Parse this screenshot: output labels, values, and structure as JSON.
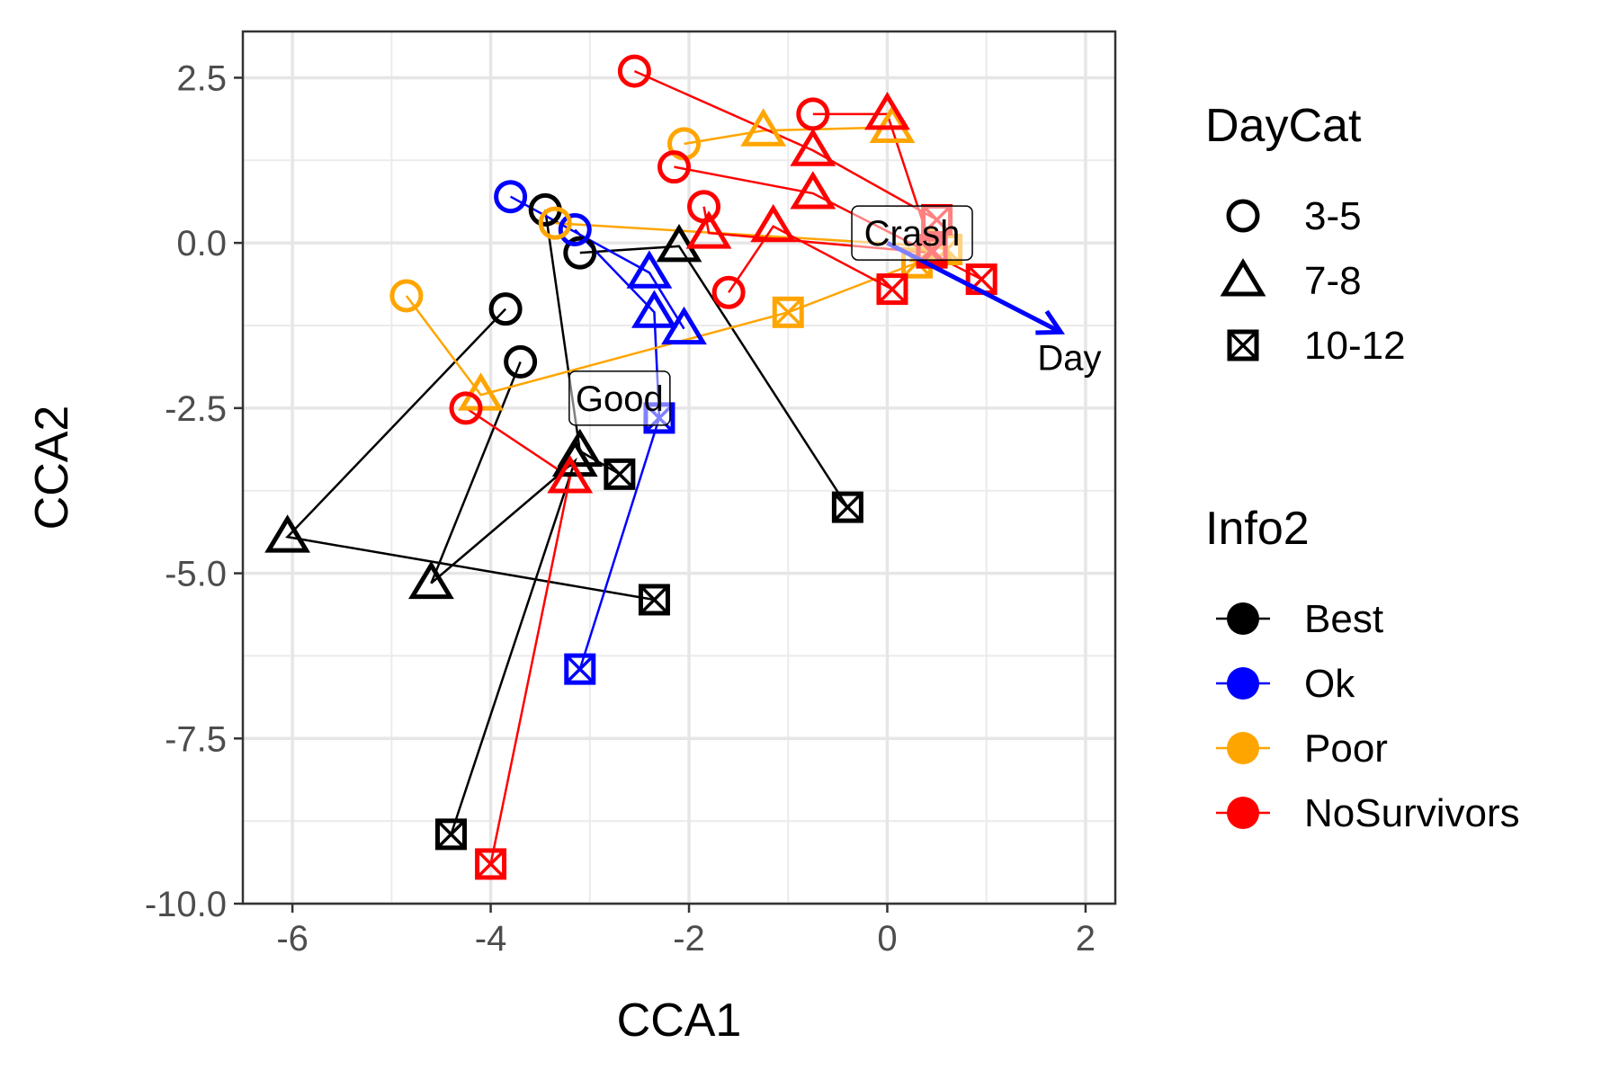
{
  "chart_data": {
    "type": "scatter",
    "title": "",
    "xlabel": "CCA1",
    "ylabel": "CCA2",
    "xlim": [
      -6.5,
      2.3
    ],
    "ylim": [
      -10.0,
      3.2
    ],
    "x_ticks": [
      -6,
      -4,
      -2,
      0,
      2
    ],
    "x_tick_labels": [
      "-6",
      "-4",
      "-2",
      "0",
      "2"
    ],
    "y_ticks": [
      2.5,
      0.0,
      -2.5,
      -5.0,
      -7.5,
      -10.0
    ],
    "y_tick_labels": [
      "2.5",
      "0.0",
      "-2.5",
      "-5.0",
      "-7.5",
      "-10.0"
    ],
    "grid": true,
    "shape_legend": {
      "title": "DayCat",
      "entries": [
        {
          "label": "3-5",
          "shape": "circle"
        },
        {
          "label": "7-8",
          "shape": "triangle"
        },
        {
          "label": "10-12",
          "shape": "boxcross"
        }
      ]
    },
    "color_legend": {
      "title": "Info2",
      "entries": [
        {
          "label": "Best",
          "color": "#000000"
        },
        {
          "label": "Ok",
          "color": "#0000ff"
        },
        {
          "label": "Poor",
          "color": "#ffa500"
        },
        {
          "label": "NoSurvivors",
          "color": "#ff0000"
        }
      ]
    },
    "legend_position": "right",
    "series": [
      {
        "group": "Best",
        "color": "#000000",
        "points": [
          {
            "x": -3.1,
            "y": -0.15,
            "shape": "circle"
          },
          {
            "x": -2.1,
            "y": -0.05,
            "shape": "triangle"
          },
          {
            "x": -0.4,
            "y": -4.0,
            "shape": "boxcross"
          }
        ]
      },
      {
        "group": "Best",
        "color": "#000000",
        "points": [
          {
            "x": -3.45,
            "y": 0.5,
            "shape": "circle"
          },
          {
            "x": -3.1,
            "y": -3.15,
            "shape": "triangle"
          },
          {
            "x": -2.7,
            "y": -3.5,
            "shape": "boxcross"
          }
        ]
      },
      {
        "group": "Best",
        "color": "#000000",
        "points": [
          {
            "x": -3.85,
            "y": -1.0,
            "shape": "circle"
          },
          {
            "x": -6.05,
            "y": -4.45,
            "shape": "triangle"
          },
          {
            "x": -2.35,
            "y": -5.4,
            "shape": "boxcross"
          }
        ]
      },
      {
        "group": "Best",
        "color": "#000000",
        "points": [
          {
            "x": -3.7,
            "y": -1.8,
            "shape": "circle"
          },
          {
            "x": -4.6,
            "y": -5.15,
            "shape": "triangle"
          },
          {
            "x": -3.15,
            "y": -3.3,
            "shape": "triangle"
          },
          {
            "x": -4.4,
            "y": -8.95,
            "shape": "boxcross"
          }
        ]
      },
      {
        "group": "Ok",
        "color": "#0000ff",
        "points": [
          {
            "x": -3.8,
            "y": 0.7,
            "shape": "circle"
          },
          {
            "x": -2.4,
            "y": -0.45,
            "shape": "triangle"
          },
          {
            "x": -2.05,
            "y": -1.3,
            "shape": "triangle"
          }
        ]
      },
      {
        "group": "Ok",
        "color": "#0000ff",
        "points": [
          {
            "x": -3.15,
            "y": 0.2,
            "shape": "circle"
          },
          {
            "x": -2.35,
            "y": -1.05,
            "shape": "triangle"
          },
          {
            "x": -2.3,
            "y": -2.65,
            "shape": "boxcross"
          },
          {
            "x": -3.1,
            "y": -6.45,
            "shape": "boxcross"
          }
        ]
      },
      {
        "group": "Poor",
        "color": "#ffa500",
        "points": [
          {
            "x": -2.05,
            "y": 1.5,
            "shape": "circle"
          },
          {
            "x": -1.25,
            "y": 1.7,
            "shape": "triangle"
          },
          {
            "x": 0.05,
            "y": 1.75,
            "shape": "triangle"
          }
        ]
      },
      {
        "group": "Poor",
        "color": "#ffa500",
        "points": [
          {
            "x": -3.35,
            "y": 0.3,
            "shape": "circle"
          },
          {
            "x": 0.45,
            "y": -0.05,
            "shape": "triangle"
          },
          {
            "x": 0.6,
            "y": -0.1,
            "shape": "boxcross"
          }
        ]
      },
      {
        "group": "Poor",
        "color": "#ffa500",
        "points": [
          {
            "x": -4.85,
            "y": -0.8,
            "shape": "circle"
          },
          {
            "x": -4.1,
            "y": -2.3,
            "shape": "triangle"
          },
          {
            "x": -1.0,
            "y": -1.05,
            "shape": "boxcross"
          },
          {
            "x": 0.3,
            "y": -0.3,
            "shape": "boxcross"
          }
        ]
      },
      {
        "group": "NoSurvivors",
        "color": "#ff0000",
        "points": [
          {
            "x": -2.55,
            "y": 2.6,
            "shape": "circle"
          },
          {
            "x": -0.75,
            "y": 1.4,
            "shape": "triangle"
          },
          {
            "x": 0.5,
            "y": 0.35,
            "shape": "boxcross"
          }
        ]
      },
      {
        "group": "NoSurvivors",
        "color": "#ff0000",
        "points": [
          {
            "x": -0.75,
            "y": 1.95,
            "shape": "circle"
          },
          {
            "x": 0.0,
            "y": 1.95,
            "shape": "triangle"
          },
          {
            "x": 0.45,
            "y": -0.1,
            "shape": "boxcross"
          }
        ]
      },
      {
        "group": "NoSurvivors",
        "color": "#ff0000",
        "points": [
          {
            "x": -2.15,
            "y": 1.15,
            "shape": "circle"
          },
          {
            "x": -0.75,
            "y": 0.75,
            "shape": "triangle"
          },
          {
            "x": 0.95,
            "y": -0.55,
            "shape": "boxcross"
          }
        ]
      },
      {
        "group": "NoSurvivors",
        "color": "#ff0000",
        "points": [
          {
            "x": -1.85,
            "y": 0.55,
            "shape": "circle"
          },
          {
            "x": -1.8,
            "y": 0.15,
            "shape": "triangle"
          },
          {
            "x": 0.45,
            "y": -0.15,
            "shape": "boxcross"
          }
        ]
      },
      {
        "group": "NoSurvivors",
        "color": "#ff0000",
        "points": [
          {
            "x": -1.6,
            "y": -0.75,
            "shape": "circle"
          },
          {
            "x": -1.15,
            "y": 0.25,
            "shape": "triangle"
          },
          {
            "x": 0.05,
            "y": -0.7,
            "shape": "boxcross"
          }
        ]
      },
      {
        "group": "NoSurvivors",
        "color": "#ff0000",
        "points": [
          {
            "x": -4.25,
            "y": -2.5,
            "shape": "circle"
          },
          {
            "x": -3.2,
            "y": -3.55,
            "shape": "triangle"
          },
          {
            "x": -4.0,
            "y": -9.4,
            "shape": "boxcross"
          }
        ]
      }
    ],
    "arrow": {
      "label": "Day",
      "from": [
        0.0,
        0.0
      ],
      "to": [
        1.75,
        -1.35
      ],
      "color": "#0000ff"
    },
    "annotations": [
      {
        "label": "Crash",
        "x": 0.25,
        "y": 0.15
      },
      {
        "label": "Good",
        "x": -2.7,
        "y": -2.35
      }
    ]
  }
}
